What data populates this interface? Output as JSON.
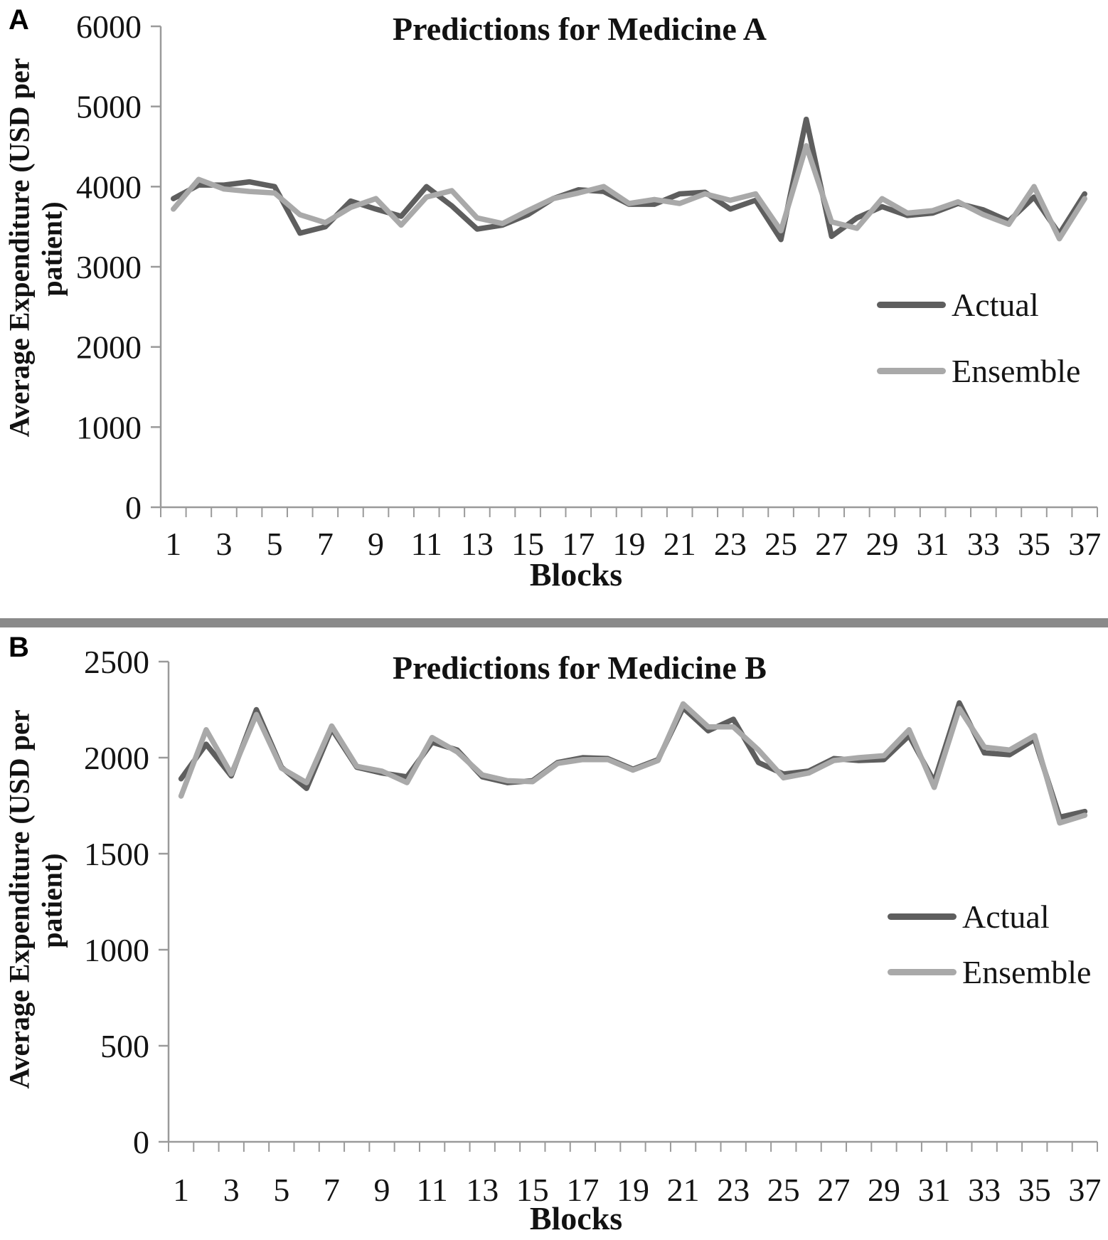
{
  "figure": {
    "divider_color": "#8a8a8a",
    "axis_color": "#9a9a9a",
    "background": "#ffffff"
  },
  "panels": [
    {
      "panel_label": "A",
      "title": "Predictions for Medicine A",
      "ylabel_line1": "Average Expenditure  (USD per",
      "ylabel_line2": "patient)",
      "xlabel": "Blocks",
      "legend": {
        "actual": "Actual",
        "ensemble": "Ensemble"
      }
    },
    {
      "panel_label": "B",
      "title": "Predictions for Medicine B",
      "ylabel_line1": "Average Expenditure  (USD per",
      "ylabel_line2": "patient)",
      "xlabel": "Blocks",
      "legend": {
        "actual": "Actual",
        "ensemble": "Ensemble"
      }
    }
  ],
  "chart_data": [
    {
      "type": "line",
      "title": "Predictions for Medicine A",
      "xlabel": "Blocks",
      "ylabel": "Average Expenditure (USD per patient)",
      "x": [
        1,
        2,
        3,
        4,
        5,
        6,
        7,
        8,
        9,
        10,
        11,
        12,
        13,
        14,
        15,
        16,
        17,
        18,
        19,
        20,
        21,
        22,
        23,
        24,
        25,
        26,
        27,
        28,
        29,
        30,
        31,
        32,
        33,
        34,
        35,
        36,
        37
      ],
      "xtick_labels": [
        1,
        3,
        5,
        7,
        9,
        11,
        13,
        15,
        17,
        19,
        21,
        23,
        25,
        27,
        29,
        31,
        33,
        35,
        37
      ],
      "ylim": [
        0,
        6000
      ],
      "ytick_step": 1000,
      "grid": false,
      "legend_position": "right-middle",
      "series": [
        {
          "name": "Actual",
          "color": "#5e5e5e",
          "values": [
            3850,
            4020,
            4020,
            4060,
            4000,
            3420,
            3500,
            3820,
            3720,
            3630,
            4000,
            3760,
            3470,
            3520,
            3650,
            3850,
            3960,
            3940,
            3780,
            3780,
            3910,
            3930,
            3720,
            3830,
            3340,
            4840,
            3380,
            3610,
            3750,
            3640,
            3670,
            3790,
            3710,
            3570,
            3870,
            3410,
            3910
          ]
        },
        {
          "name": "Ensemble",
          "color": "#a9a9a9",
          "values": [
            3720,
            4090,
            3970,
            3940,
            3920,
            3650,
            3550,
            3740,
            3850,
            3520,
            3870,
            3950,
            3610,
            3540,
            3700,
            3850,
            3920,
            4000,
            3790,
            3840,
            3790,
            3910,
            3830,
            3910,
            3450,
            4510,
            3560,
            3480,
            3850,
            3670,
            3700,
            3810,
            3650,
            3530,
            4000,
            3350,
            3850
          ]
        }
      ]
    },
    {
      "type": "line",
      "title": "Predictions for Medicine B",
      "xlabel": "Blocks",
      "ylabel": "Average Expenditure (USD per patient)",
      "x": [
        1,
        2,
        3,
        4,
        5,
        6,
        7,
        8,
        9,
        10,
        11,
        12,
        13,
        14,
        15,
        16,
        17,
        18,
        19,
        20,
        21,
        22,
        23,
        24,
        25,
        26,
        27,
        28,
        29,
        30,
        31,
        32,
        33,
        34,
        35,
        36,
        37
      ],
      "xtick_labels": [
        1,
        3,
        5,
        7,
        9,
        11,
        13,
        15,
        17,
        19,
        21,
        23,
        25,
        27,
        29,
        31,
        33,
        35,
        37
      ],
      "ylim": [
        0,
        2500
      ],
      "ytick_step": 500,
      "grid": false,
      "legend_position": "right-middle",
      "series": [
        {
          "name": "Actual",
          "color": "#5e5e5e",
          "values": [
            1890,
            2070,
            1905,
            2250,
            1950,
            1840,
            2150,
            1950,
            1920,
            1900,
            2080,
            2040,
            1900,
            1870,
            1880,
            1975,
            2000,
            1995,
            1940,
            1990,
            2260,
            2140,
            2200,
            1975,
            1915,
            1930,
            1995,
            1985,
            1990,
            2115,
            1875,
            2285,
            2025,
            2015,
            2095,
            1690,
            1720
          ]
        },
        {
          "name": "Ensemble",
          "color": "#a9a9a9",
          "values": [
            1800,
            2145,
            1915,
            2225,
            1945,
            1870,
            2165,
            1955,
            1930,
            1870,
            2105,
            2030,
            1910,
            1880,
            1875,
            1970,
            1990,
            1990,
            1935,
            1985,
            2280,
            2160,
            2160,
            2040,
            1895,
            1920,
            1985,
            2000,
            2010,
            2145,
            1845,
            2255,
            2055,
            2040,
            2115,
            1660,
            1700
          ]
        }
      ]
    }
  ]
}
